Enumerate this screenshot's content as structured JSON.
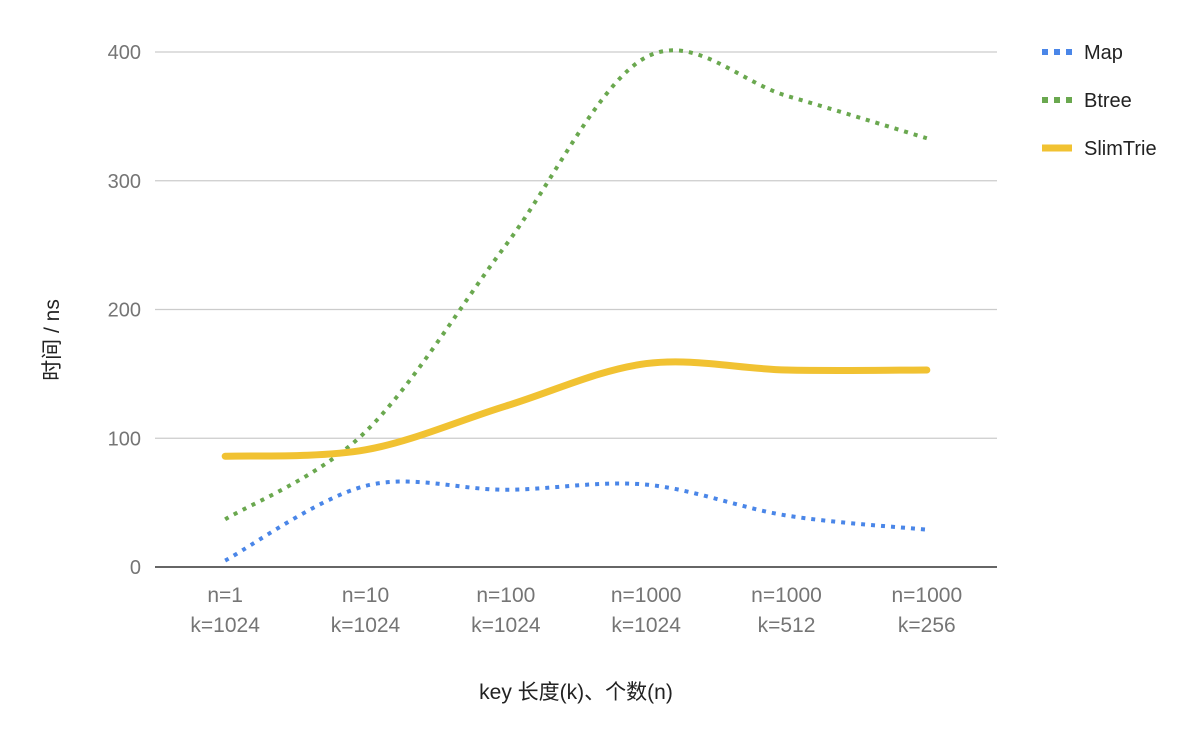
{
  "chart_data": {
    "type": "line",
    "categories": [
      [
        "n=1",
        "k=1024"
      ],
      [
        "n=10",
        "k=1024"
      ],
      [
        "n=100",
        "k=1024"
      ],
      [
        "n=1000",
        "k=1024"
      ],
      [
        "n=1000",
        "k=512"
      ],
      [
        "n=1000",
        "k=256"
      ]
    ],
    "series": [
      {
        "name": "Map",
        "values": [
          5,
          63,
          60,
          64,
          40,
          29
        ],
        "color": "#4a86e8",
        "style": "dotted"
      },
      {
        "name": "Btree",
        "values": [
          37,
          105,
          250,
          396,
          366,
          333
        ],
        "color": "#6aa84f",
        "style": "dotted"
      },
      {
        "name": "SlimTrie",
        "values": [
          86,
          91,
          125,
          158,
          153,
          153
        ],
        "color": "#f1c232",
        "style": "solid"
      }
    ],
    "xlabel": "key 长度(k)、个数(n)",
    "ylabel": "时间 / ns",
    "yticks": [
      0,
      100,
      200,
      300,
      400
    ],
    "ylim": [
      0,
      400
    ],
    "grid": true,
    "legend_position": "right"
  }
}
